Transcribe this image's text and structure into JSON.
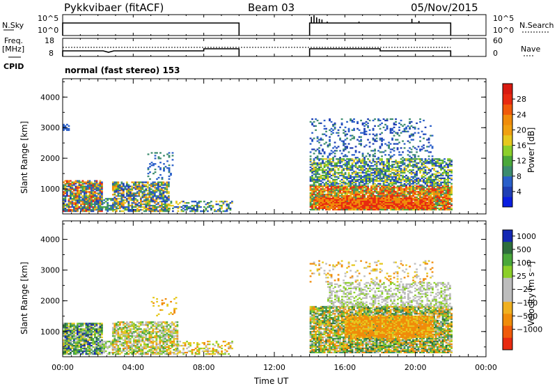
{
  "header": {
    "station": "Pykkvibaer (fitACF)",
    "beam": "Beam 03",
    "date": "05/Nov/2015"
  },
  "top_panels": {
    "nsky_label": "N.Sky",
    "nsky_ticks": [
      "10^5",
      "10^0"
    ],
    "nsearch_label": "N.Search",
    "freq_label_1": "Freq.",
    "freq_label_2": "[MHz]",
    "freq_ticks": [
      "18",
      "8"
    ],
    "nave_ticks": [
      "60",
      "0"
    ],
    "nave_label": "Nave",
    "cpid_label": "CPID",
    "cpid_text": "normal (fast stereo) 153"
  },
  "colors": {
    "blue_dark": "#1f3fb4",
    "blue": "#2a5fc9",
    "teal": "#3c8c6e",
    "green": "#4aa83a",
    "lgreen": "#8ccf2a",
    "yellow": "#e6c81e",
    "orange": "#f08c0a",
    "red": "#e82a10",
    "gray": "#bdbdbd",
    "vblue": "#1428b4",
    "vdkgreen": "#2e6e3c"
  },
  "chart_data": [
    {
      "type": "heatmap",
      "title": "Power",
      "ylabel": "Slant Range [km]",
      "ylim": [
        180,
        4600
      ],
      "y_ticks": [
        "1000",
        "2000",
        "3000",
        "4000"
      ],
      "colorbar": {
        "label": "Power [dB]",
        "ticks": [
          "4",
          "8",
          "12",
          "16",
          "20",
          "24",
          "28"
        ],
        "range": [
          0,
          32
        ]
      },
      "x_ticks": [
        "00:00",
        "04:00",
        "08:00",
        "12:00",
        "16:00",
        "20:00",
        "00:00"
      ],
      "xlim_hours": [
        0,
        24
      ],
      "data_gaps_hours": [
        [
          10,
          14
        ],
        [
          22,
          24
        ]
      ]
    },
    {
      "type": "heatmap",
      "title": "Velocity",
      "ylabel": "Slant Range [km]",
      "ylim": [
        180,
        4600
      ],
      "y_ticks": [
        "1000",
        "2000",
        "3000",
        "4000"
      ],
      "colorbar": {
        "label": "Velocity [m s⁻¹]",
        "ticks": [
          "1000",
          "500",
          "100",
          "25",
          "−25",
          "−100",
          "−500",
          "−1000"
        ]
      },
      "x_ticks": [
        "00:00",
        "04:00",
        "08:00",
        "12:00",
        "16:00",
        "20:00",
        "00:00"
      ],
      "xlabel": "Time UT",
      "xlim_hours": [
        0,
        24
      ],
      "data_gaps_hours": [
        [
          10,
          14
        ],
        [
          22,
          24
        ]
      ]
    }
  ]
}
